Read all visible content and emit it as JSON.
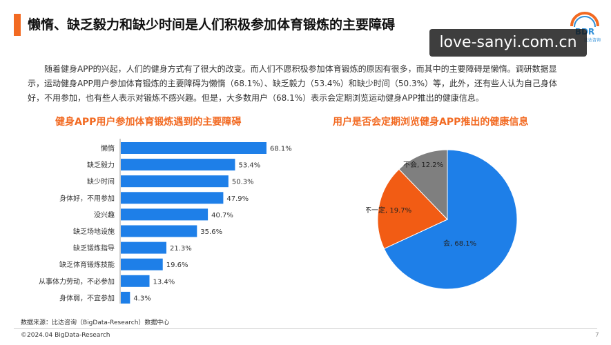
{
  "header": {
    "title": "懒惰、缺乏毅力和缺少时间是人们积极参加体育锻炼的主要障碍"
  },
  "logo": {
    "text": "BDR",
    "sub_text": "比达咨询",
    "accent": "#f26a22",
    "secondary": "#2f8fd8"
  },
  "watermark": {
    "text": "love-sanyi.com.cn"
  },
  "intro": {
    "text": "随着健身APP的兴起，人们的健身方式有了很大的改变。而人们不愿积极参加体育锻炼的原因有很多，而其中的主要障碍是懒惰。调研数据显示，运动健身APP用户参加体育锻炼的主要障碍为懒惰（68.1%）、缺乏毅力（53.4%）和缺少时间（50.3%）等，此外，还有些人认为自己身体好，不用参加，也有些人表示对锻炼不感兴趣。但是，大多数用户（68.1%）表示会定期浏览运动健身APP推出的健康信息。"
  },
  "chart_data": [
    {
      "type": "bar",
      "orientation": "horizontal",
      "title": "健身APP用户参加体育锻炼遇到的主要障碍",
      "categories": [
        "懒惰",
        "缺乏毅力",
        "缺少时间",
        "身体好，不用参加",
        "没兴趣",
        "缺乏场地设施",
        "缺乏锻炼指导",
        "缺乏体育锻炼技能",
        "从事体力劳动，不必参加",
        "身体弱，不宜参加"
      ],
      "values": [
        68.1,
        53.4,
        50.3,
        47.9,
        40.7,
        35.6,
        21.3,
        19.6,
        13.4,
        4.3
      ],
      "value_labels": [
        "68.1%",
        "53.4%",
        "50.3%",
        "47.9%",
        "40.7%",
        "35.6%",
        "21.3%",
        "19.6%",
        "13.4%",
        "4.3%"
      ],
      "color": "#1e7fe8",
      "xlim": [
        0,
        68.1
      ],
      "grid": false
    },
    {
      "type": "pie",
      "title": "用户是否会定期浏览健身APP推出的健康信息",
      "categories": [
        "会",
        "不一定",
        "不会"
      ],
      "values": [
        68.1,
        19.7,
        12.2
      ],
      "slice_labels": [
        "会, 68.1%",
        "不一定, 19.7%",
        "不会, 12.2%"
      ],
      "colors": [
        "#1e7fe8",
        "#f25c14",
        "#7f7f7f"
      ]
    }
  ],
  "footer": {
    "source": "数据来源：比达咨询（BigData-Research）数据中心",
    "copyright": "©2024.04 BigData-Research",
    "page": "7"
  }
}
